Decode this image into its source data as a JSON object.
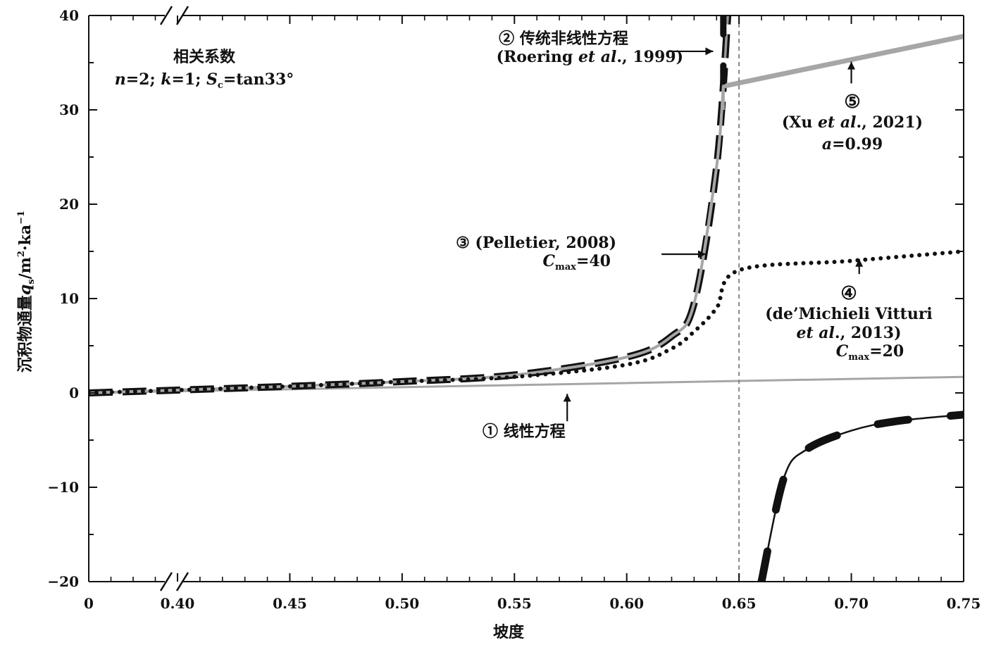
{
  "chart_data": {
    "type": "line",
    "xlabel": "坡度",
    "ylabel_main": "沉积物通量",
    "ylabel_symbol": "q",
    "ylabel_symbol_sub": "s",
    "ylabel_unit_pre": "/m",
    "ylabel_unit_sup1": "2",
    "ylabel_unit_mid": "·ka",
    "ylabel_unit_sup2": "−1",
    "xlim": [
      0.4,
      0.75
    ],
    "ylim": [
      -20,
      40
    ],
    "x_axis_break": true,
    "x_break_start_label": "0",
    "x_ticks": [
      0.4,
      0.45,
      0.5,
      0.55,
      0.6,
      0.65,
      0.7,
      0.75
    ],
    "x_tick_labels": [
      "0.40",
      "0.45",
      "0.50",
      "0.55",
      "0.60",
      "0.65",
      "0.70",
      "0.75"
    ],
    "y_ticks": [
      -20,
      -10,
      0,
      10,
      20,
      30,
      40
    ],
    "y_tick_labels": [
      "−20",
      "−10",
      "0",
      "10",
      "20",
      "30",
      "40"
    ],
    "critical_slope": 0.65,
    "params": {
      "n": 2,
      "k": 1,
      "Sc_deg": 33,
      "Cmax_pelletier": 40,
      "Cmax_vitturi": 20,
      "a_xu": 0.99
    },
    "series": [
      {
        "name": "① 线性方程",
        "style": "solid-thin",
        "color": "#a6a6a6",
        "x": [
          0,
          0.75
        ],
        "y": [
          0,
          1.7
        ]
      },
      {
        "name": "② 传统非线性方程 (Roering et al., 1999)",
        "style": "long-dash",
        "color": "#111111",
        "x": [
          0,
          0.4,
          0.45,
          0.5,
          0.55,
          0.6,
          0.62,
          0.63,
          0.64,
          0.645,
          0.65,
          0.66,
          0.67,
          0.68,
          0.7,
          0.72,
          0.75
        ],
        "y": [
          0,
          0.3,
          0.7,
          1.2,
          1.9,
          3.8,
          6.0,
          9.5,
          24.0,
          40.0,
          null,
          -20.0,
          -9.0,
          -6.0,
          -4.0,
          -3.0,
          -2.3
        ]
      },
      {
        "name": "③ (Pelletier, 2008)",
        "style": "solid-gray",
        "color": "#a6a6a6",
        "x": [
          0,
          0.4,
          0.45,
          0.5,
          0.55,
          0.6,
          0.62,
          0.63,
          0.64,
          0.643
        ],
        "y": [
          0,
          0.3,
          0.7,
          1.2,
          1.9,
          3.8,
          6.0,
          9.5,
          24.0,
          32.5
        ]
      },
      {
        "name": "④ (de'Michieli Vitturi et al., 2013)",
        "style": "dotted",
        "color": "#111111",
        "x": [
          0,
          0.4,
          0.45,
          0.5,
          0.55,
          0.6,
          0.62,
          0.63,
          0.64,
          0.65,
          0.7,
          0.75
        ],
        "y": [
          0,
          0.3,
          0.7,
          1.2,
          1.7,
          3.0,
          4.7,
          6.5,
          9.0,
          13.0,
          14.0,
          15.0
        ]
      },
      {
        "name": "⑤ (Xu et al., 2021)",
        "style": "solid-thick-gray",
        "color": "#a6a6a6",
        "x": [
          0.643,
          0.75
        ],
        "y": [
          32.5,
          37.8
        ]
      }
    ]
  },
  "annotations": {
    "coef_title": "相关系数",
    "coef_n": "n",
    "coef_n_val": "=2; ",
    "coef_k": "k",
    "coef_k_val": "=1; ",
    "coef_S": "S",
    "coef_S_sub": "c",
    "coef_S_val": "=tan33°",
    "ann2_line1": "② 传统非线性方程",
    "ann2_line2_pre": "(Roering ",
    "ann2_line2_it": "et al",
    "ann2_line2_post": "., 1999)",
    "ann3_line1": "③ (Pelletier, 2008)",
    "ann3_C": "C",
    "ann3_C_sub": "max",
    "ann3_C_val": "=40",
    "ann5_num": "⑤",
    "ann5_line_pre": "(Xu ",
    "ann5_line_it": "et al",
    "ann5_line_post": "., 2021)",
    "ann5_a": "a",
    "ann5_a_val": "=0.99",
    "ann4_num": "④",
    "ann4_line1": "(de’Michieli Vitturi",
    "ann4_line2_it": "et al",
    "ann4_line2_post": "., 2013)",
    "ann4_C": "C",
    "ann4_C_sub": "max",
    "ann4_C_val": "=20",
    "ann1": "① 线性方程"
  }
}
